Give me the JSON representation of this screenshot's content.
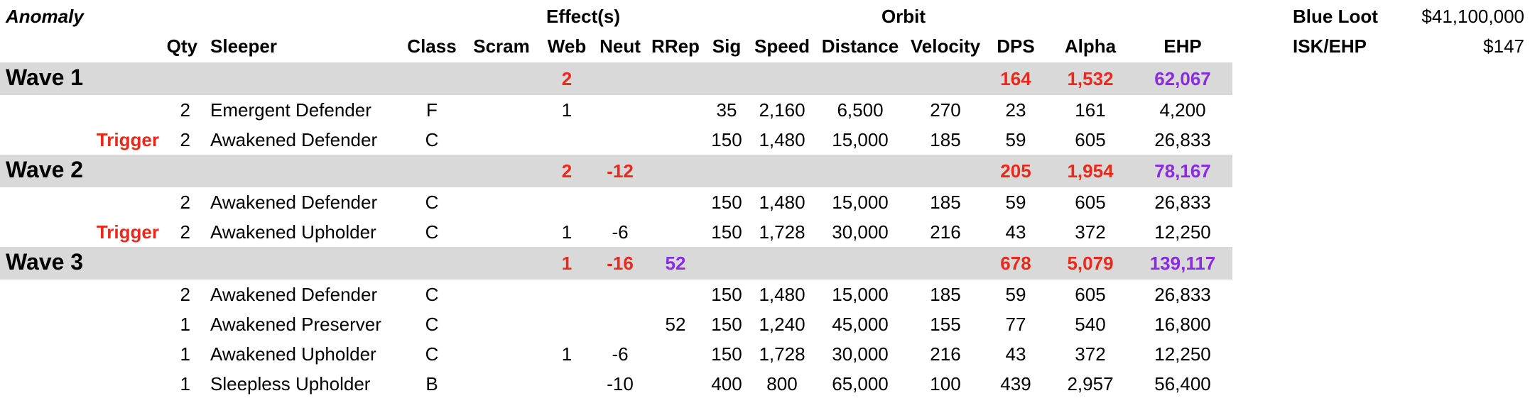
{
  "anomaly_label": "Anomaly",
  "group_headers": {
    "effects": "Effect(s)",
    "orbit": "Orbit"
  },
  "columns": {
    "qty": "Qty",
    "sleeper": "Sleeper",
    "class": "Class",
    "scram": "Scram",
    "web": "Web",
    "neut": "Neut",
    "rrep": "RRep",
    "sig": "Sig",
    "speed": "Speed",
    "distance": "Distance",
    "velocity": "Velocity",
    "dps": "DPS",
    "alpha": "Alpha",
    "ehp": "EHP"
  },
  "summary": {
    "blue_loot_label": "Blue Loot",
    "blue_loot_value": "$41,100,000",
    "isk_ehp_label": "ISK/EHP",
    "isk_ehp_value": "$147"
  },
  "colors": {
    "band": "#d9d9d9",
    "red": "#e8291c",
    "purple": "#8a2be2"
  },
  "waves": [
    {
      "name": "Wave 1",
      "totals": {
        "web": "2",
        "neut": "",
        "rrep": "",
        "dps": "164",
        "alpha": "1,532",
        "ehp": "62,067"
      },
      "rows": [
        {
          "trigger": "",
          "qty": "2",
          "sleeper": "Emergent Defender",
          "class": "F",
          "web": "1",
          "neut": "",
          "rrep": "",
          "sig": "35",
          "speed": "2,160",
          "distance": "6,500",
          "velocity": "270",
          "dps": "23",
          "alpha": "161",
          "ehp": "4,200"
        },
        {
          "trigger": "Trigger",
          "qty": "2",
          "sleeper": "Awakened Defender",
          "class": "C",
          "web": "",
          "neut": "",
          "rrep": "",
          "sig": "150",
          "speed": "1,480",
          "distance": "15,000",
          "velocity": "185",
          "dps": "59",
          "alpha": "605",
          "ehp": "26,833"
        }
      ]
    },
    {
      "name": "Wave 2",
      "totals": {
        "web": "2",
        "neut": "-12",
        "rrep": "",
        "dps": "205",
        "alpha": "1,954",
        "ehp": "78,167"
      },
      "rows": [
        {
          "trigger": "",
          "qty": "2",
          "sleeper": "Awakened Defender",
          "class": "C",
          "web": "",
          "neut": "",
          "rrep": "",
          "sig": "150",
          "speed": "1,480",
          "distance": "15,000",
          "velocity": "185",
          "dps": "59",
          "alpha": "605",
          "ehp": "26,833"
        },
        {
          "trigger": "Trigger",
          "qty": "2",
          "sleeper": "Awakened Upholder",
          "class": "C",
          "web": "1",
          "neut": "-6",
          "rrep": "",
          "sig": "150",
          "speed": "1,728",
          "distance": "30,000",
          "velocity": "216",
          "dps": "43",
          "alpha": "372",
          "ehp": "12,250"
        }
      ]
    },
    {
      "name": "Wave 3",
      "totals": {
        "web": "1",
        "neut": "-16",
        "rrep": "52",
        "dps": "678",
        "alpha": "5,079",
        "ehp": "139,117"
      },
      "rows": [
        {
          "trigger": "",
          "qty": "2",
          "sleeper": "Awakened Defender",
          "class": "C",
          "web": "",
          "neut": "",
          "rrep": "",
          "sig": "150",
          "speed": "1,480",
          "distance": "15,000",
          "velocity": "185",
          "dps": "59",
          "alpha": "605",
          "ehp": "26,833"
        },
        {
          "trigger": "",
          "qty": "1",
          "sleeper": "Awakened Preserver",
          "class": "C",
          "web": "",
          "neut": "",
          "rrep": "52",
          "sig": "150",
          "speed": "1,240",
          "distance": "45,000",
          "velocity": "155",
          "dps": "77",
          "alpha": "540",
          "ehp": "16,800"
        },
        {
          "trigger": "",
          "qty": "1",
          "sleeper": "Awakened Upholder",
          "class": "C",
          "web": "1",
          "neut": "-6",
          "rrep": "",
          "sig": "150",
          "speed": "1,728",
          "distance": "30,000",
          "velocity": "216",
          "dps": "43",
          "alpha": "372",
          "ehp": "12,250"
        },
        {
          "trigger": "",
          "qty": "1",
          "sleeper": "Sleepless Upholder",
          "class": "B",
          "web": "",
          "neut": "-10",
          "rrep": "",
          "sig": "400",
          "speed": "800",
          "distance": "65,000",
          "velocity": "100",
          "dps": "439",
          "alpha": "2,957",
          "ehp": "56,400"
        }
      ]
    }
  ]
}
